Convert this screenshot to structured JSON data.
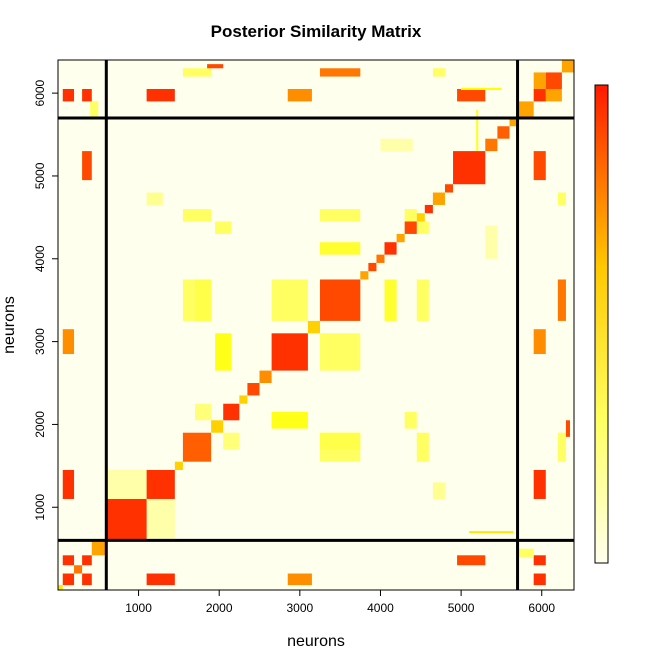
{
  "chart_data": {
    "type": "heatmap",
    "title": "Posterior Similarity Matrix",
    "xlabel": "neurons",
    "ylabel": "neurons",
    "xlim": [
      1,
      6400
    ],
    "ylim": [
      1,
      6400
    ],
    "x_ticks": [
      1000,
      2000,
      3000,
      4000,
      5000,
      6000
    ],
    "y_ticks": [
      1000,
      2000,
      3000,
      4000,
      5000,
      6000
    ],
    "x_tick_labels": [
      "1000",
      "2000",
      "3000",
      "4000",
      "5000",
      "6000"
    ],
    "y_tick_labels": [
      "1000",
      "2000",
      "3000",
      "4000",
      "5000",
      "6000"
    ],
    "group_boundaries": [
      600,
      5700
    ],
    "color_scale": {
      "low": "#fffff2",
      "mid": "#ffff00",
      "high": "#ff1a00",
      "range": [
        0,
        1
      ]
    },
    "legend": "right",
    "diagonal_blocks": [
      {
        "start": 1,
        "end": 60,
        "value": 0.55
      },
      {
        "start": 60,
        "end": 200,
        "value": 0.95
      },
      {
        "start": 200,
        "end": 300,
        "value": 0.8
      },
      {
        "start": 300,
        "end": 420,
        "value": 0.95
      },
      {
        "start": 420,
        "end": 600,
        "value": 0.7
      },
      {
        "start": 600,
        "end": 1100,
        "value": 0.95
      },
      {
        "start": 1100,
        "end": 1450,
        "value": 0.95
      },
      {
        "start": 1450,
        "end": 1550,
        "value": 0.6
      },
      {
        "start": 1550,
        "end": 1900,
        "value": 0.85
      },
      {
        "start": 1900,
        "end": 2050,
        "value": 0.6
      },
      {
        "start": 2050,
        "end": 2250,
        "value": 0.95
      },
      {
        "start": 2250,
        "end": 2350,
        "value": 0.6
      },
      {
        "start": 2350,
        "end": 2500,
        "value": 0.9
      },
      {
        "start": 2500,
        "end": 2650,
        "value": 0.75
      },
      {
        "start": 2650,
        "end": 3100,
        "value": 0.95
      },
      {
        "start": 3100,
        "end": 3250,
        "value": 0.6
      },
      {
        "start": 3250,
        "end": 3750,
        "value": 0.9
      },
      {
        "start": 3750,
        "end": 3850,
        "value": 0.7
      },
      {
        "start": 3850,
        "end": 3950,
        "value": 0.9
      },
      {
        "start": 3950,
        "end": 4050,
        "value": 0.8
      },
      {
        "start": 4050,
        "end": 4200,
        "value": 0.95
      },
      {
        "start": 4200,
        "end": 4300,
        "value": 0.7
      },
      {
        "start": 4300,
        "end": 4450,
        "value": 0.9
      },
      {
        "start": 4450,
        "end": 4550,
        "value": 0.6
      },
      {
        "start": 4550,
        "end": 4650,
        "value": 0.95
      },
      {
        "start": 4650,
        "end": 4800,
        "value": 0.7
      },
      {
        "start": 4800,
        "end": 4900,
        "value": 0.9
      },
      {
        "start": 4900,
        "end": 5300,
        "value": 0.95
      },
      {
        "start": 5300,
        "end": 5450,
        "value": 0.8
      },
      {
        "start": 5450,
        "end": 5600,
        "value": 0.85
      },
      {
        "start": 5600,
        "end": 5700,
        "value": 0.7
      },
      {
        "start": 5700,
        "end": 5900,
        "value": 0.7
      },
      {
        "start": 5900,
        "end": 6050,
        "value": 0.95
      },
      {
        "start": 6050,
        "end": 6250,
        "value": 0.9
      },
      {
        "start": 6250,
        "end": 6400,
        "value": 0.7
      }
    ],
    "off_diagonal_blocks": [
      {
        "r": [
          1100,
          1450
        ],
        "c": [
          600,
          1100
        ],
        "value": 0.15
      },
      {
        "r": [
          5900,
          6050
        ],
        "c": [
          300,
          420
        ],
        "value": 0.95
      },
      {
        "r": [
          5900,
          6050
        ],
        "c": [
          1100,
          1450
        ],
        "value": 0.95
      },
      {
        "r": [
          6050,
          6250
        ],
        "c": [
          5900,
          6050
        ],
        "value": 0.7
      },
      {
        "r": [
          4950,
          5300
        ],
        "c": [
          300,
          420
        ],
        "value": 0.9
      },
      {
        "r": [
          4950,
          5300
        ],
        "c": [
          5900,
          6050
        ],
        "value": 0.9
      },
      {
        "r": [
          60,
          200
        ],
        "c": [
          300,
          420
        ],
        "value": 0.95
      },
      {
        "r": [
          60,
          200
        ],
        "c": [
          1100,
          1450
        ],
        "value": 0.95
      },
      {
        "r": [
          60,
          200
        ],
        "c": [
          5900,
          6050
        ],
        "value": 0.95
      },
      {
        "r": [
          2850,
          3150
        ],
        "c": [
          60,
          200
        ],
        "value": 0.75
      },
      {
        "r": [
          2850,
          3150
        ],
        "c": [
          5900,
          6050
        ],
        "value": 0.75
      },
      {
        "r": [
          3250,
          3750
        ],
        "c": [
          1550,
          1900
        ],
        "value": 0.3
      },
      {
        "r": [
          3250,
          3750
        ],
        "c": [
          2650,
          3100
        ],
        "value": 0.3
      },
      {
        "r": [
          3250,
          3750
        ],
        "c": [
          4050,
          4200
        ],
        "value": 0.4
      },
      {
        "r": [
          4450,
          4600
        ],
        "c": [
          1550,
          1900
        ],
        "value": 0.3
      },
      {
        "r": [
          4450,
          4600
        ],
        "c": [
          3250,
          3750
        ],
        "value": 0.3
      },
      {
        "r": [
          4450,
          4600
        ],
        "c": [
          4300,
          4450
        ],
        "value": 0.3
      },
      {
        "r": [
          6200,
          6300
        ],
        "c": [
          3250,
          3750
        ],
        "value": 0.8
      },
      {
        "r": [
          6200,
          6300
        ],
        "c": [
          1550,
          1900
        ],
        "value": 0.3
      },
      {
        "r": [
          6200,
          6300
        ],
        "c": [
          4650,
          4800
        ],
        "value": 0.3
      },
      {
        "r": [
          6300,
          6350
        ],
        "c": [
          1850,
          2050
        ],
        "value": 0.9
      },
      {
        "r": [
          1950,
          2150
        ],
        "c": [
          2650,
          3100
        ],
        "value": 0.45
      },
      {
        "r": [
          1950,
          2150
        ],
        "c": [
          4300,
          4450
        ],
        "value": 0.3
      },
      {
        "r": [
          1700,
          1900
        ],
        "c": [
          3250,
          3750
        ],
        "value": 0.35
      },
      {
        "r": [
          1700,
          1900
        ],
        "c": [
          2050,
          2250
        ],
        "value": 0.25
      },
      {
        "r": [
          400,
          500
        ],
        "c": [
          5700,
          5900
        ],
        "value": 0.3
      },
      {
        "r": [
          1100,
          1300
        ],
        "c": [
          4650,
          4800
        ],
        "value": 0.2
      },
      {
        "r": [
          4000,
          4400
        ],
        "c": [
          5300,
          5450
        ],
        "value": 0.15
      }
    ],
    "strip_lines": [
      {
        "type": "v",
        "at": 5200,
        "from": 5300,
        "to": 5800,
        "value": 0.45
      },
      {
        "type": "h",
        "at": 700,
        "from": 5100,
        "to": 5650,
        "value": 0.55
      },
      {
        "type": "h",
        "at": 6050,
        "from": 5000,
        "to": 5500,
        "value": 0.5
      }
    ]
  }
}
